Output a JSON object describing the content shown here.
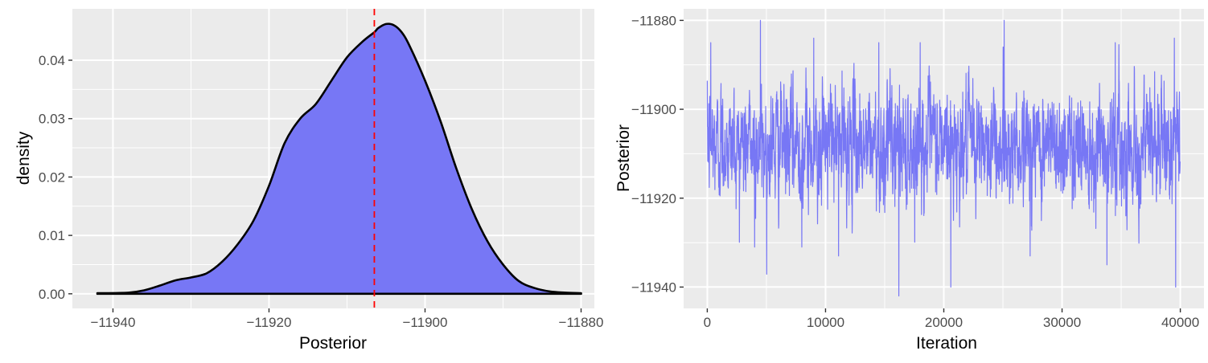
{
  "chart_data": [
    {
      "type": "area",
      "xlabel": "Posterior",
      "ylabel": "density",
      "xlim": [
        -11945.2,
        -11878.3
      ],
      "ylim": [
        -0.0025,
        0.0488
      ],
      "xticks": [
        -11940,
        -11920,
        -11900,
        -11880
      ],
      "xtick_labels": [
        "−11940",
        "−11920",
        "−11900",
        "−11880"
      ],
      "yticks": [
        0,
        0.01,
        0.02,
        0.03,
        0.04
      ],
      "ytick_labels": [
        "0.00",
        "0.01",
        "0.02",
        "0.03",
        "0.04"
      ],
      "grid": true,
      "panel_background": "#ebebeb",
      "fill_color": "#7777f5",
      "line_color": "#000000",
      "reference_line": {
        "x": -11906.5,
        "color": "#ff0000",
        "style": "dashed"
      },
      "x": [
        -11942,
        -11938,
        -11936,
        -11934,
        -11932,
        -11930,
        -11928,
        -11926,
        -11924,
        -11922,
        -11920,
        -11918,
        -11916,
        -11914,
        -11912,
        -11910,
        -11908,
        -11906.5,
        -11906,
        -11905,
        -11904,
        -11903,
        -11902,
        -11900,
        -11898,
        -11896,
        -11894,
        -11892,
        -11890,
        -11888,
        -11886,
        -11884,
        -11882,
        -11880
      ],
      "y": [
        0.0001,
        0.0002,
        0.0006,
        0.0014,
        0.0023,
        0.0028,
        0.0035,
        0.0055,
        0.0085,
        0.0125,
        0.0185,
        0.0258,
        0.03,
        0.0325,
        0.0365,
        0.0405,
        0.0432,
        0.0448,
        0.0455,
        0.0462,
        0.046,
        0.0448,
        0.0425,
        0.0365,
        0.0295,
        0.0215,
        0.0145,
        0.009,
        0.005,
        0.0022,
        0.001,
        0.0004,
        0.0002,
        0.0001
      ]
    },
    {
      "type": "line",
      "xlabel": "Iteration",
      "ylabel": "Posterior",
      "xlim": [
        -2000,
        42000
      ],
      "ylim": [
        -11944.8,
        -11877.4
      ],
      "xticks": [
        0,
        10000,
        20000,
        30000,
        40000
      ],
      "xtick_labels": [
        "0",
        "10000",
        "20000",
        "30000",
        "40000"
      ],
      "yticks": [
        -11940,
        -11920,
        -11900,
        -11880
      ],
      "ytick_labels": [
        "−11940",
        "−11920",
        "−11900",
        "−11880"
      ],
      "grid": true,
      "panel_background": "#ebebeb",
      "line_color": "#7777f5",
      "n_iterations": 40000,
      "center": -11908,
      "upper_extremes": [
        [
          300,
          -11885
        ],
        [
          4500,
          -11880
        ],
        [
          9000,
          -11884
        ],
        [
          14500,
          -11885
        ],
        [
          18000,
          -11885
        ],
        [
          25100,
          -11880
        ],
        [
          34500,
          -11885
        ],
        [
          39500,
          -11884
        ]
      ],
      "lower_extremes": [
        [
          16200,
          -11942
        ],
        [
          20600,
          -11940
        ],
        [
          4000,
          -11931
        ],
        [
          33800,
          -11935
        ],
        [
          39600,
          -11940
        ],
        [
          11100,
          -11933
        ],
        [
          27300,
          -11933
        ],
        [
          8000,
          -11931
        ]
      ]
    }
  ]
}
